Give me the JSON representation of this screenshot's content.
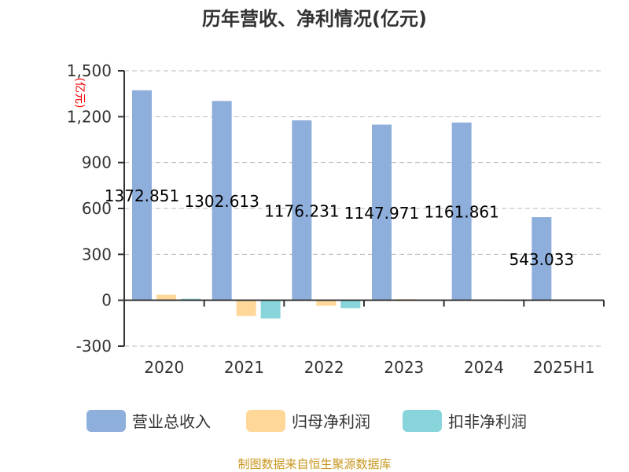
{
  "chart_data": {
    "type": "bar",
    "title": "历年营收、净利情况(亿元)",
    "ylabel": "(亿元)",
    "categories": [
      "2020",
      "2021",
      "2022",
      "2023",
      "2024",
      "2025H1"
    ],
    "ylim": [
      -300,
      1500
    ],
    "yticks": [
      -300,
      0,
      300,
      600,
      900,
      1200,
      1500
    ],
    "ytick_labels": [
      "-300",
      "0",
      "300",
      "600",
      "900",
      "1,200",
      "1,500"
    ],
    "grid": true,
    "legend_position": "bottom",
    "series": [
      {
        "name": "营业总收入",
        "color": "#8eaedb",
        "values": [
          1372.851,
          1302.613,
          1176.231,
          1147.971,
          1161.861,
          543.033
        ],
        "labels": [
          "1372.851",
          "1302.613",
          "1176.231",
          "1147.971",
          "1161.861",
          "543.033"
        ]
      },
      {
        "name": "归母净利润",
        "color": "#ffd899",
        "values": [
          36,
          -103,
          -36,
          8,
          5,
          5
        ]
      },
      {
        "name": "扣非净利润",
        "color": "#87d5da",
        "values": [
          10,
          -119,
          -52,
          3,
          -5,
          4
        ]
      }
    ]
  },
  "source": "制图数据来自恒生聚源数据库"
}
